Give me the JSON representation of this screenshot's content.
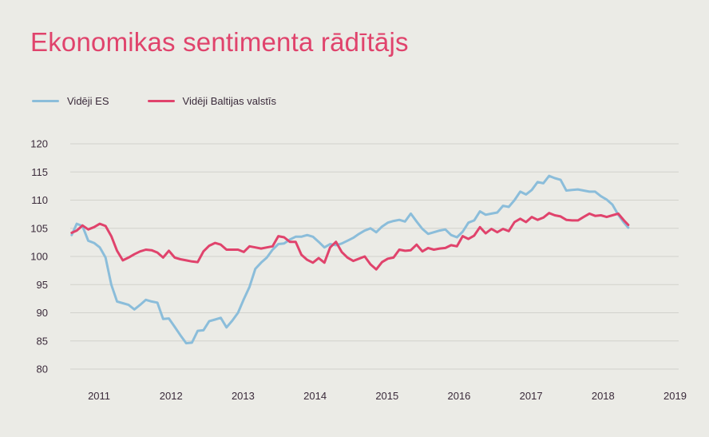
{
  "title": "Ekonomikas sentimenta rādītājs",
  "colors": {
    "eu": "#8bbdda",
    "baltic": "#e0436c",
    "grid": "#d2d2cc",
    "background": "#ebebe6"
  },
  "chart_data": {
    "type": "line",
    "title": "Ekonomikas sentimenta rādītājs",
    "xlabel": "",
    "ylabel": "",
    "ylim": [
      80,
      120
    ],
    "yticks": [
      80,
      85,
      90,
      95,
      100,
      105,
      110,
      115,
      120
    ],
    "xrange": [
      2010.6,
      2019.05
    ],
    "xticks": [
      {
        "label": "2011",
        "x": 2011.0
      },
      {
        "label": "2012",
        "x": 2012.0
      },
      {
        "label": "2013",
        "x": 2013.0
      },
      {
        "label": "2014",
        "x": 2014.0
      },
      {
        "label": "2015",
        "x": 2015.0
      },
      {
        "label": "2016",
        "x": 2016.0
      },
      {
        "label": "2017",
        "x": 2017.0
      },
      {
        "label": "2018",
        "x": 2018.0
      },
      {
        "label": "2019",
        "x": 2019.0
      }
    ],
    "grid": true,
    "legend_position": "top-left",
    "series": [
      {
        "name": "Vidēji ES",
        "color": "#8bbdda",
        "points": [
          [
            2010.62,
            103.8
          ],
          [
            2010.69,
            105.8
          ],
          [
            2010.77,
            105.4
          ],
          [
            2010.85,
            102.8
          ],
          [
            2010.93,
            102.4
          ],
          [
            2011.01,
            101.6
          ],
          [
            2011.09,
            99.8
          ],
          [
            2011.17,
            95.0
          ],
          [
            2011.25,
            92.0
          ],
          [
            2011.33,
            91.7
          ],
          [
            2011.41,
            91.4
          ],
          [
            2011.49,
            90.6
          ],
          [
            2011.57,
            91.4
          ],
          [
            2011.65,
            92.3
          ],
          [
            2011.73,
            92.0
          ],
          [
            2011.81,
            91.8
          ],
          [
            2011.89,
            88.9
          ],
          [
            2011.97,
            89.0
          ],
          [
            2012.05,
            87.5
          ],
          [
            2012.13,
            86.0
          ],
          [
            2012.21,
            84.6
          ],
          [
            2012.29,
            84.7
          ],
          [
            2012.37,
            86.8
          ],
          [
            2012.45,
            86.9
          ],
          [
            2012.53,
            88.5
          ],
          [
            2012.61,
            88.8
          ],
          [
            2012.69,
            89.1
          ],
          [
            2012.77,
            87.4
          ],
          [
            2012.85,
            88.6
          ],
          [
            2012.93,
            90.0
          ],
          [
            2013.01,
            92.4
          ],
          [
            2013.09,
            94.6
          ],
          [
            2013.17,
            97.8
          ],
          [
            2013.25,
            98.9
          ],
          [
            2013.33,
            99.8
          ],
          [
            2013.41,
            101.2
          ],
          [
            2013.49,
            102.2
          ],
          [
            2013.57,
            102.3
          ],
          [
            2013.65,
            103.0
          ],
          [
            2013.73,
            103.5
          ],
          [
            2013.81,
            103.5
          ],
          [
            2013.89,
            103.8
          ],
          [
            2013.97,
            103.5
          ],
          [
            2014.05,
            102.6
          ],
          [
            2014.13,
            101.6
          ],
          [
            2014.21,
            102.2
          ],
          [
            2014.29,
            102.0
          ],
          [
            2014.37,
            102.3
          ],
          [
            2014.45,
            102.8
          ],
          [
            2014.53,
            103.3
          ],
          [
            2014.61,
            104.0
          ],
          [
            2014.69,
            104.6
          ],
          [
            2014.77,
            105.0
          ],
          [
            2014.85,
            104.3
          ],
          [
            2014.93,
            105.3
          ],
          [
            2015.01,
            106.0
          ],
          [
            2015.09,
            106.3
          ],
          [
            2015.17,
            106.5
          ],
          [
            2015.25,
            106.2
          ],
          [
            2015.33,
            107.6
          ],
          [
            2015.41,
            106.2
          ],
          [
            2015.49,
            104.9
          ],
          [
            2015.57,
            104.0
          ],
          [
            2015.65,
            104.3
          ],
          [
            2015.73,
            104.6
          ],
          [
            2015.81,
            104.8
          ],
          [
            2015.89,
            103.8
          ],
          [
            2015.97,
            103.4
          ],
          [
            2016.05,
            104.4
          ],
          [
            2016.13,
            106.0
          ],
          [
            2016.21,
            106.4
          ],
          [
            2016.29,
            108.0
          ],
          [
            2016.37,
            107.4
          ],
          [
            2016.45,
            107.6
          ],
          [
            2016.53,
            107.8
          ],
          [
            2016.61,
            109.0
          ],
          [
            2016.69,
            108.8
          ],
          [
            2016.77,
            110.0
          ],
          [
            2016.85,
            111.5
          ],
          [
            2016.93,
            111.0
          ],
          [
            2017.01,
            111.8
          ],
          [
            2017.09,
            113.2
          ],
          [
            2017.17,
            113.0
          ],
          [
            2017.25,
            114.3
          ],
          [
            2017.33,
            113.9
          ],
          [
            2017.41,
            113.6
          ],
          [
            2017.49,
            111.7
          ],
          [
            2017.57,
            111.8
          ],
          [
            2017.65,
            111.9
          ],
          [
            2017.73,
            111.7
          ],
          [
            2017.81,
            111.5
          ],
          [
            2017.89,
            111.5
          ],
          [
            2017.97,
            110.7
          ],
          [
            2018.05,
            110.1
          ],
          [
            2018.13,
            109.2
          ],
          [
            2018.21,
            107.4
          ],
          [
            2018.29,
            106.0
          ],
          [
            2018.35,
            105.1
          ]
        ]
      },
      {
        "name": "Vidēji Baltijas valstīs",
        "color": "#e0436c",
        "points": [
          [
            2010.62,
            104.2
          ],
          [
            2010.69,
            104.6
          ],
          [
            2010.77,
            105.5
          ],
          [
            2010.85,
            104.8
          ],
          [
            2010.93,
            105.2
          ],
          [
            2011.01,
            105.8
          ],
          [
            2011.09,
            105.4
          ],
          [
            2011.17,
            103.6
          ],
          [
            2011.25,
            101.0
          ],
          [
            2011.33,
            99.3
          ],
          [
            2011.41,
            99.8
          ],
          [
            2011.49,
            100.4
          ],
          [
            2011.57,
            100.9
          ],
          [
            2011.65,
            101.2
          ],
          [
            2011.73,
            101.1
          ],
          [
            2011.81,
            100.7
          ],
          [
            2011.89,
            99.8
          ],
          [
            2011.97,
            101.0
          ],
          [
            2012.05,
            99.8
          ],
          [
            2012.13,
            99.5
          ],
          [
            2012.21,
            99.3
          ],
          [
            2012.29,
            99.1
          ],
          [
            2012.37,
            99.0
          ],
          [
            2012.45,
            100.9
          ],
          [
            2012.53,
            101.9
          ],
          [
            2012.61,
            102.4
          ],
          [
            2012.69,
            102.1
          ],
          [
            2012.77,
            101.2
          ],
          [
            2012.85,
            101.2
          ],
          [
            2012.93,
            101.2
          ],
          [
            2013.01,
            100.8
          ],
          [
            2013.09,
            101.8
          ],
          [
            2013.17,
            101.6
          ],
          [
            2013.25,
            101.4
          ],
          [
            2013.33,
            101.6
          ],
          [
            2013.41,
            101.8
          ],
          [
            2013.49,
            103.6
          ],
          [
            2013.57,
            103.4
          ],
          [
            2013.65,
            102.6
          ],
          [
            2013.73,
            102.6
          ],
          [
            2013.81,
            100.3
          ],
          [
            2013.89,
            99.4
          ],
          [
            2013.97,
            98.9
          ],
          [
            2014.05,
            99.7
          ],
          [
            2014.13,
            98.9
          ],
          [
            2014.21,
            101.6
          ],
          [
            2014.29,
            102.6
          ],
          [
            2014.37,
            100.8
          ],
          [
            2014.45,
            99.8
          ],
          [
            2014.53,
            99.2
          ],
          [
            2014.61,
            99.6
          ],
          [
            2014.69,
            100.0
          ],
          [
            2014.77,
            98.6
          ],
          [
            2014.85,
            97.7
          ],
          [
            2014.93,
            99.0
          ],
          [
            2015.01,
            99.6
          ],
          [
            2015.09,
            99.8
          ],
          [
            2015.17,
            101.2
          ],
          [
            2015.25,
            101.0
          ],
          [
            2015.33,
            101.1
          ],
          [
            2015.41,
            102.1
          ],
          [
            2015.49,
            100.9
          ],
          [
            2015.57,
            101.5
          ],
          [
            2015.65,
            101.2
          ],
          [
            2015.73,
            101.4
          ],
          [
            2015.81,
            101.5
          ],
          [
            2015.89,
            102.0
          ],
          [
            2015.97,
            101.8
          ],
          [
            2016.05,
            103.6
          ],
          [
            2016.13,
            103.1
          ],
          [
            2016.21,
            103.7
          ],
          [
            2016.29,
            105.2
          ],
          [
            2016.37,
            104.1
          ],
          [
            2016.45,
            104.9
          ],
          [
            2016.53,
            104.3
          ],
          [
            2016.61,
            104.9
          ],
          [
            2016.69,
            104.5
          ],
          [
            2016.77,
            106.1
          ],
          [
            2016.85,
            106.7
          ],
          [
            2016.93,
            106.1
          ],
          [
            2017.01,
            107.0
          ],
          [
            2017.09,
            106.5
          ],
          [
            2017.17,
            106.9
          ],
          [
            2017.25,
            107.7
          ],
          [
            2017.33,
            107.3
          ],
          [
            2017.41,
            107.1
          ],
          [
            2017.49,
            106.5
          ],
          [
            2017.57,
            106.4
          ],
          [
            2017.65,
            106.4
          ],
          [
            2017.73,
            107.0
          ],
          [
            2017.81,
            107.6
          ],
          [
            2017.89,
            107.2
          ],
          [
            2017.97,
            107.3
          ],
          [
            2018.05,
            107.0
          ],
          [
            2018.13,
            107.3
          ],
          [
            2018.21,
            107.6
          ],
          [
            2018.29,
            106.4
          ],
          [
            2018.35,
            105.6
          ]
        ]
      }
    ]
  }
}
